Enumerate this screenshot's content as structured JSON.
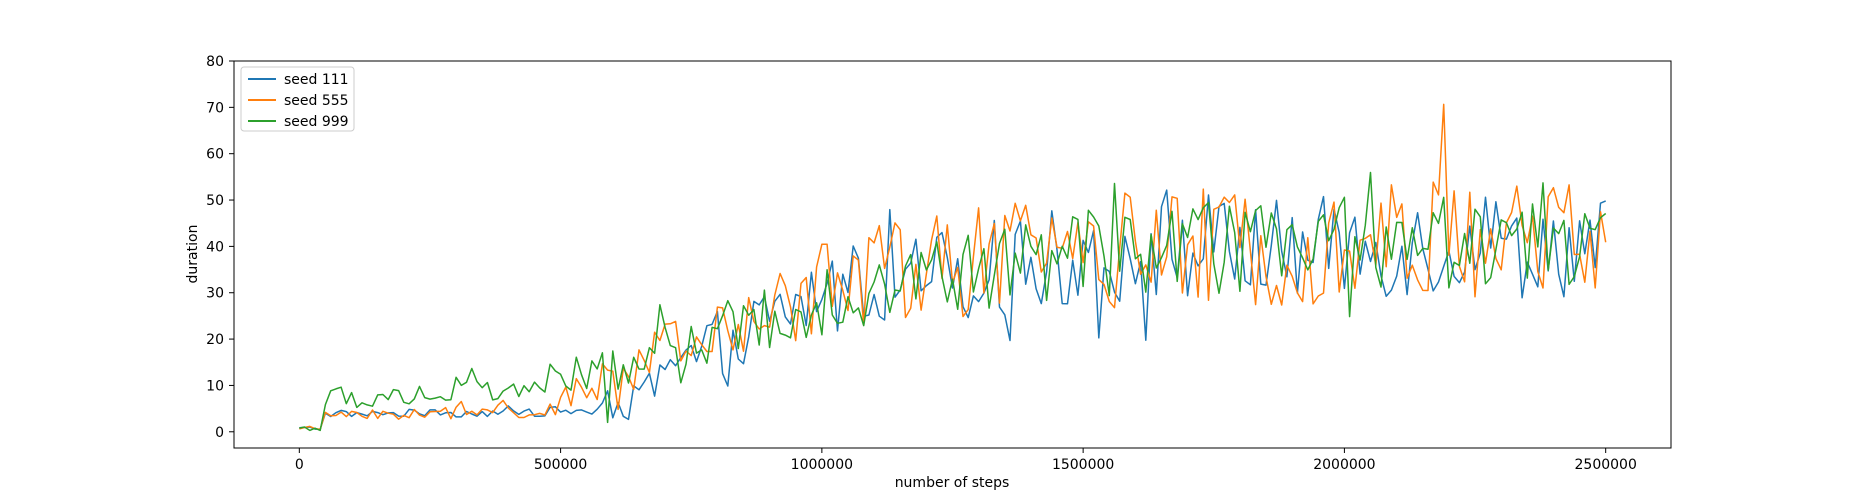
{
  "chart_data": {
    "type": "line",
    "title": "",
    "xlabel": "number of steps",
    "ylabel": "duration",
    "xlim": [
      -125000,
      2625000
    ],
    "ylim": [
      -3.5,
      80
    ],
    "xticks": [
      0,
      500000,
      1000000,
      1500000,
      2000000,
      2500000
    ],
    "xtick_labels": [
      "0",
      "500000",
      "1000000",
      "1500000",
      "2000000",
      "2500000"
    ],
    "yticks": [
      0,
      10,
      20,
      30,
      40,
      50,
      60,
      70,
      80
    ],
    "ytick_labels": [
      "0",
      "10",
      "20",
      "30",
      "40",
      "50",
      "60",
      "70",
      "80"
    ],
    "grid": false,
    "legend_position": "upper-left",
    "x_sampling": {
      "start": 0,
      "end": 2500000,
      "step": 10000
    },
    "series": [
      {
        "name": "seed 111",
        "color": "#1f77b4",
        "trend": [
          [
            0,
            0.8
          ],
          [
            45000,
            0.8
          ],
          [
            50000,
            3.8
          ],
          [
            300000,
            4.0
          ],
          [
            550000,
            4.5
          ],
          [
            640000,
            6.0
          ],
          [
            700000,
            12.0
          ],
          [
            800000,
            19.0
          ],
          [
            900000,
            24.0
          ],
          [
            1000000,
            30.0
          ],
          [
            1200000,
            33.0
          ],
          [
            1500000,
            38.0
          ],
          [
            1800000,
            39.0
          ],
          [
            2100000,
            40.0
          ],
          [
            2500000,
            40.0
          ]
        ],
        "noise": [
          [
            0,
            0.15
          ],
          [
            50000,
            0.4
          ],
          [
            550000,
            0.8
          ],
          [
            650000,
            3.0
          ],
          [
            800000,
            5.0
          ],
          [
            1000000,
            7.0
          ],
          [
            1500000,
            8.0
          ],
          [
            2500000,
            8.0
          ]
        ],
        "spike": [
          [
            0,
            0
          ],
          [
            50000,
            0.5
          ],
          [
            600000,
            1.5
          ],
          [
            1000000,
            5.0
          ],
          [
            2500000,
            8.0
          ]
        ]
      },
      {
        "name": "seed 555",
        "color": "#ff7f0e",
        "trend": [
          [
            0,
            0.8
          ],
          [
            45000,
            0.8
          ],
          [
            50000,
            3.5
          ],
          [
            300000,
            4.0
          ],
          [
            480000,
            5.0
          ],
          [
            600000,
            12.0
          ],
          [
            700000,
            17.0
          ],
          [
            850000,
            22.0
          ],
          [
            1000000,
            33.0
          ],
          [
            1200000,
            36.0
          ],
          [
            1500000,
            39.0
          ],
          [
            1800000,
            40.0
          ],
          [
            2100000,
            41.5
          ],
          [
            2500000,
            42.0
          ]
        ],
        "noise": [
          [
            0,
            0.15
          ],
          [
            50000,
            0.5
          ],
          [
            450000,
            1.5
          ],
          [
            600000,
            3.5
          ],
          [
            800000,
            5.0
          ],
          [
            1000000,
            8.0
          ],
          [
            1500000,
            9.0
          ],
          [
            2500000,
            10.0
          ]
        ],
        "spike": [
          [
            0,
            0
          ],
          [
            50000,
            1.0
          ],
          [
            600000,
            3.0
          ],
          [
            1000000,
            8.0
          ],
          [
            1500000,
            10.0
          ],
          [
            2300000,
            14.0
          ],
          [
            2500000,
            12.0
          ]
        ]
      },
      {
        "name": "seed 999",
        "color": "#2ca02c",
        "trend": [
          [
            0,
            0.8
          ],
          [
            45000,
            0.8
          ],
          [
            50000,
            7.0
          ],
          [
            200000,
            8.0
          ],
          [
            400000,
            9.5
          ],
          [
            500000,
            11.0
          ],
          [
            650000,
            15.0
          ],
          [
            800000,
            21.0
          ],
          [
            900000,
            25.0
          ],
          [
            1000000,
            29.0
          ],
          [
            1200000,
            33.0
          ],
          [
            1500000,
            38.0
          ],
          [
            1800000,
            40.0
          ],
          [
            2100000,
            41.0
          ],
          [
            2500000,
            41.0
          ]
        ],
        "noise": [
          [
            0,
            0.15
          ],
          [
            50000,
            1.8
          ],
          [
            400000,
            2.5
          ],
          [
            600000,
            3.5
          ],
          [
            800000,
            4.5
          ],
          [
            1000000,
            6.0
          ],
          [
            1500000,
            7.0
          ],
          [
            2500000,
            7.5
          ]
        ],
        "spike": [
          [
            0,
            0
          ],
          [
            50000,
            3.0
          ],
          [
            500000,
            6.0
          ],
          [
            800000,
            8.0
          ],
          [
            1000000,
            8.0
          ],
          [
            2500000,
            9.0
          ]
        ]
      }
    ]
  }
}
